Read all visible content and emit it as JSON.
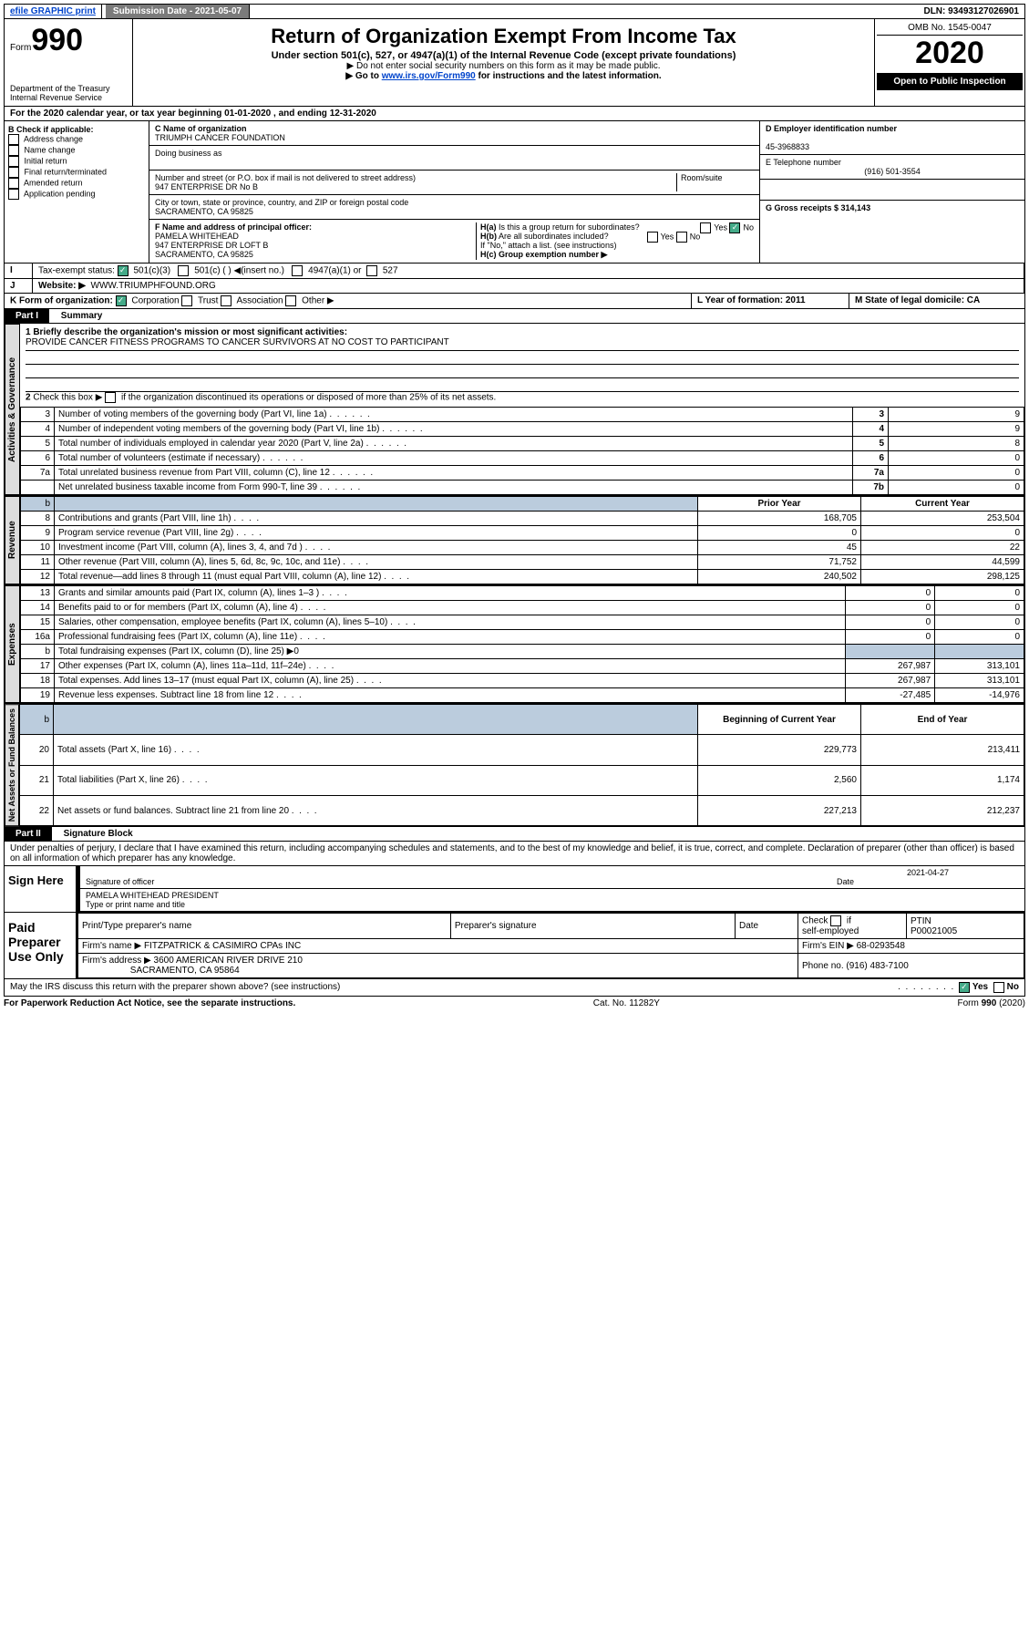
{
  "top": {
    "efile": "efile GRAPHIC print",
    "subdate_lbl": "Submission Date - 2021-05-07",
    "dln": "DLN: 93493127026901"
  },
  "header": {
    "form": "Form",
    "num": "990",
    "title": "Return of Organization Exempt From Income Tax",
    "sub1": "Under section 501(c), 527, or 4947(a)(1) of the Internal Revenue Code (except private foundations)",
    "sub2": "Do not enter social security numbers on this form as it may be made public.",
    "sub3_a": "Go to ",
    "sub3_link": "www.irs.gov/Form990",
    "sub3_b": " for instructions and the latest information.",
    "dept": "Department of the Treasury\nInternal Revenue Service",
    "omb": "OMB No. 1545-0047",
    "year": "2020",
    "open": "Open to Public Inspection"
  },
  "A": {
    "text": "For the 2020 calendar year, or tax year beginning 01-01-2020    , and ending 12-31-2020"
  },
  "B": {
    "label": "B Check if applicable:",
    "opts": [
      "Address change",
      "Name change",
      "Initial return",
      "Final return/terminated",
      "Amended return",
      "Application pending"
    ]
  },
  "C": {
    "name_lbl": "C Name of organization",
    "name": "TRIUMPH CANCER FOUNDATION",
    "dba_lbl": "Doing business as",
    "street_lbl": "Number and street (or P.O. box if mail is not delivered to street address)",
    "room_lbl": "Room/suite",
    "street": "947 ENTERPRISE DR No B",
    "city_lbl": "City or town, state or province, country, and ZIP or foreign postal code",
    "city": "SACRAMENTO, CA  95825",
    "F_lbl": "F Name and address of principal officer:",
    "F_name": "PAMELA WHITEHEAD",
    "F_addr1": "947 ENTERPRISE DR LOFT B",
    "F_addr2": "SACRAMENTO, CA  95825"
  },
  "D": {
    "lbl": "D Employer identification number",
    "val": "45-3968833"
  },
  "E": {
    "lbl": "E Telephone number",
    "val": "(916) 501-3554"
  },
  "G": {
    "lbl": "G Gross receipts $ 314,143"
  },
  "H": {
    "a_lbl": "H(a)  Is this a group return for subordinates?",
    "b_lbl": "H(b)  Are all subordinates included?",
    "b_note": "If \"No,\" attach a list. (see instructions)",
    "c_lbl": "H(c)  Group exemption number ▶",
    "yes": "Yes",
    "no": "No"
  },
  "I": {
    "lbl": "Tax-exempt status:",
    "o1": "501(c)(3)",
    "o2": "501(c) (   ) ◀(insert no.)",
    "o3": "4947(a)(1) or",
    "o4": "527"
  },
  "J": {
    "lbl": "Website: ▶",
    "val": "WWW.TRIUMPHFOUND.ORG"
  },
  "K": {
    "lbl": "K Form of organization:",
    "o1": "Corporation",
    "o2": "Trust",
    "o3": "Association",
    "o4": "Other ▶"
  },
  "L": {
    "lbl": "L Year of formation: 2011"
  },
  "M": {
    "lbl": "M State of legal domicile: CA"
  },
  "partI": {
    "hdr": "Part I",
    "title": "Summary"
  },
  "summary": {
    "q1": "1  Briefly describe the organization's mission or most significant activities:",
    "mission": "PROVIDE CANCER FITNESS PROGRAMS TO CANCER SURVIVORS AT NO COST TO PARTICIPANT",
    "q2": "2  Check this box ▶        if the organization discontinued its operations or disposed of more than 25% of its net assets.",
    "rows_a": [
      {
        "n": "3",
        "d": "Number of voting members of the governing body (Part VI, line 1a)",
        "b": "3",
        "v": "9"
      },
      {
        "n": "4",
        "d": "Number of independent voting members of the governing body (Part VI, line 1b)",
        "b": "4",
        "v": "9"
      },
      {
        "n": "5",
        "d": "Total number of individuals employed in calendar year 2020 (Part V, line 2a)",
        "b": "5",
        "v": "8"
      },
      {
        "n": "6",
        "d": "Total number of volunteers (estimate if necessary)",
        "b": "6",
        "v": "0"
      },
      {
        "n": "7a",
        "d": "Total unrelated business revenue from Part VIII, column (C), line 12",
        "b": "7a",
        "v": "0"
      },
      {
        "n": "",
        "d": "Net unrelated business taxable income from Form 990-T, line 39",
        "b": "7b",
        "v": "0"
      }
    ],
    "col_prior": "Prior Year",
    "col_curr": "Current Year",
    "sections": {
      "gov": "Activities & Governance",
      "rev": "Revenue",
      "exp": "Expenses",
      "net": "Net Assets or Fund Balances"
    },
    "rows_r": [
      {
        "n": "8",
        "d": "Contributions and grants (Part VIII, line 1h)",
        "p": "168,705",
        "c": "253,504"
      },
      {
        "n": "9",
        "d": "Program service revenue (Part VIII, line 2g)",
        "p": "0",
        "c": "0"
      },
      {
        "n": "10",
        "d": "Investment income (Part VIII, column (A), lines 3, 4, and 7d )",
        "p": "45",
        "c": "22"
      },
      {
        "n": "11",
        "d": "Other revenue (Part VIII, column (A), lines 5, 6d, 8c, 9c, 10c, and 11e)",
        "p": "71,752",
        "c": "44,599"
      },
      {
        "n": "12",
        "d": "Total revenue—add lines 8 through 11 (must equal Part VIII, column (A), line 12)",
        "p": "240,502",
        "c": "298,125"
      }
    ],
    "rows_e": [
      {
        "n": "13",
        "d": "Grants and similar amounts paid (Part IX, column (A), lines 1–3 )",
        "p": "0",
        "c": "0"
      },
      {
        "n": "14",
        "d": "Benefits paid to or for members (Part IX, column (A), line 4)",
        "p": "0",
        "c": "0"
      },
      {
        "n": "15",
        "d": "Salaries, other compensation, employee benefits (Part IX, column (A), lines 5–10)",
        "p": "0",
        "c": "0"
      },
      {
        "n": "16a",
        "d": "Professional fundraising fees (Part IX, column (A), line 11e)",
        "p": "0",
        "c": "0"
      },
      {
        "n": "b",
        "d": "Total fundraising expenses (Part IX, column (D), line 25) ▶0",
        "p": "",
        "c": "",
        "shade": true
      },
      {
        "n": "17",
        "d": "Other expenses (Part IX, column (A), lines 11a–11d, 11f–24e)",
        "p": "267,987",
        "c": "313,101"
      },
      {
        "n": "18",
        "d": "Total expenses. Add lines 13–17 (must equal Part IX, column (A), line 25)",
        "p": "267,987",
        "c": "313,101"
      },
      {
        "n": "19",
        "d": "Revenue less expenses. Subtract line 18 from line 12",
        "p": "-27,485",
        "c": "-14,976"
      }
    ],
    "col_beg": "Beginning of Current Year",
    "col_end": "End of Year",
    "rows_n": [
      {
        "n": "20",
        "d": "Total assets (Part X, line 16)",
        "p": "229,773",
        "c": "213,411"
      },
      {
        "n": "21",
        "d": "Total liabilities (Part X, line 26)",
        "p": "2,560",
        "c": "1,174"
      },
      {
        "n": "22",
        "d": "Net assets or fund balances. Subtract line 21 from line 20",
        "p": "227,213",
        "c": "212,237"
      }
    ]
  },
  "partII": {
    "hdr": "Part II",
    "title": "Signature Block",
    "decl": "Under penalties of perjury, I declare that I have examined this return, including accompanying schedules and statements, and to the best of my knowledge and belief, it is true, correct, and complete. Declaration of preparer (other than officer) is based on all information of which preparer has any knowledge."
  },
  "sign": {
    "here": "Sign Here",
    "sig_lbl": "Signature of officer",
    "date_lbl": "Date",
    "date": "2021-04-27",
    "name": "PAMELA WHITEHEAD  PRESIDENT",
    "name_lbl": "Type or print name and title"
  },
  "paid": {
    "lbl": "Paid Preparer Use Only",
    "h1": "Print/Type preparer's name",
    "h2": "Preparer's signature",
    "h3": "Date",
    "h4": "Check         if self-employed",
    "h5": "PTIN",
    "ptin": "P00021005",
    "firm_lbl": "Firm's name   ▶",
    "firm": "FITZPATRICK & CASIMIRO CPAs INC",
    "ein_lbl": "Firm's EIN ▶",
    "ein": "68-0293548",
    "addr_lbl": "Firm's address ▶",
    "addr1": "3600 AMERICAN RIVER DRIVE 210",
    "addr2": "SACRAMENTO, CA  95864",
    "phone_lbl": "Phone no.",
    "phone": "(916) 483-7100"
  },
  "bottom": {
    "q": "May the IRS discuss this return with the preparer shown above? (see instructions)",
    "pra": "For Paperwork Reduction Act Notice, see the separate instructions.",
    "cat": "Cat. No. 11282Y",
    "form": "Form 990 (2020)"
  }
}
